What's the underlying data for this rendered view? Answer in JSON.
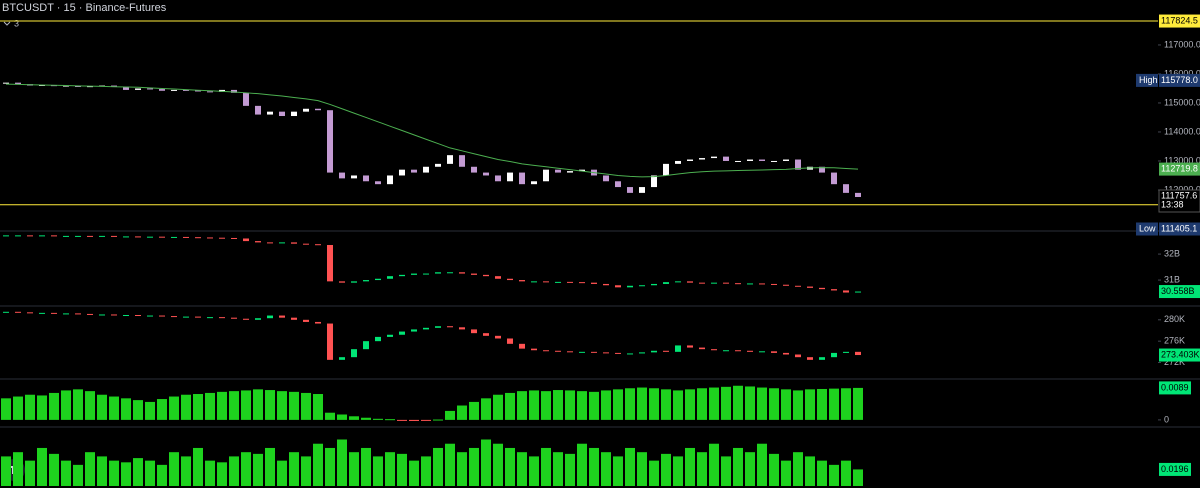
{
  "chart_data": [
    {
      "type": "candlestick",
      "title": "BTCUSDT · 15 · Binance-Futures",
      "indicator_count": "3",
      "up_color": "#ffffff",
      "down_color": "#c39bd3",
      "values": [
        115700,
        115650,
        115600,
        115620,
        115580,
        115600,
        115550,
        115580,
        115600,
        115560,
        115450,
        115500,
        115480,
        115420,
        115450,
        115430,
        115400,
        115380,
        115450,
        115350,
        114900,
        114600,
        114700,
        114550,
        114700,
        114800,
        114750,
        112600,
        112400,
        112500,
        112300,
        112200,
        112500,
        112700,
        112600,
        112800,
        112900,
        113200,
        112800,
        112600,
        112500,
        112300,
        112600,
        112200,
        112300,
        112700,
        112600,
        112650,
        112700,
        112500,
        112300,
        112100,
        111900,
        112100,
        112500,
        112900,
        113000,
        113050,
        113100,
        113150,
        113000,
        113000,
        113050,
        113000,
        113000,
        113050,
        112700,
        112800,
        112600,
        112200,
        111900,
        111757.6
      ],
      "last_time": "13:38",
      "ma": {
        "color": "#4caf50",
        "values": [
          115650,
          115640,
          115630,
          115620,
          115610,
          115600,
          115590,
          115580,
          115570,
          115560,
          115550,
          115540,
          115520,
          115500,
          115480,
          115460,
          115440,
          115420,
          115400,
          115380,
          115350,
          115320,
          115280,
          115240,
          115190,
          115140,
          115080,
          114950,
          114800,
          114650,
          114500,
          114350,
          114200,
          114050,
          113900,
          113750,
          113600,
          113450,
          113350,
          113250,
          113150,
          113050,
          112980,
          112900,
          112850,
          112800,
          112750,
          112700,
          112650,
          112600,
          112550,
          112500,
          112470,
          112450,
          112460,
          112500,
          112550,
          112600,
          112630,
          112650,
          112660,
          112670,
          112680,
          112690,
          112700,
          112710,
          112740,
          112760,
          112770,
          112765,
          112740,
          112719.8
        ]
      },
      "levels": [
        {
          "value": 117824.5,
          "color": "#ffeb3b"
        },
        {
          "value": 111489.9,
          "color": "#ffeb3b"
        }
      ],
      "high": {
        "name": "High",
        "value": {
          "value": 115778,
          "label": "115778.0"
        }
      },
      "low": {
        "name": "Low",
        "value": 111405.1
      },
      "ylim": [
        110620,
        118550
      ],
      "yticks": [
        {
          "value": 112000,
          "label": "112000.0"
        },
        {
          "value": 113000,
          "label": "113000.0"
        },
        {
          "value": 114000,
          "label": "114000.0"
        },
        {
          "value": 115000,
          "label": "115000.0"
        },
        {
          "value": 116000,
          "label": "116000.0"
        },
        {
          "value": 117000,
          "label": "117000.0"
        }
      ]
    },
    {
      "type": "candlestick",
      "up_color": "#00e676",
      "down_color": "#ff5252",
      "values": [
        32.72,
        32.72,
        32.71,
        32.72,
        32.7,
        32.7,
        32.7,
        32.69,
        32.7,
        32.68,
        32.68,
        32.67,
        32.67,
        32.66,
        32.66,
        32.65,
        32.64,
        32.63,
        32.62,
        32.6,
        32.5,
        32.45,
        32.42,
        32.45,
        32.4,
        32.38,
        32.35,
        30.95,
        30.9,
        30.95,
        31.0,
        31.05,
        31.15,
        31.2,
        31.25,
        31.25,
        31.3,
        31.3,
        31.25,
        31.2,
        31.15,
        31.05,
        31.0,
        30.95,
        30.95,
        30.93,
        30.93,
        30.92,
        30.9,
        30.85,
        30.8,
        30.72,
        30.78,
        30.8,
        30.85,
        30.92,
        30.95,
        30.9,
        30.88,
        30.9,
        30.88,
        30.85,
        30.87,
        30.85,
        30.82,
        30.78,
        30.75,
        30.7,
        30.65,
        30.6,
        30.52,
        30.558
      ],
      "last_label": "30.558B",
      "ylim": [
        30.04,
        32.85
      ],
      "yticks": [
        {
          "value": 31,
          "label": "31B"
        },
        {
          "value": 32,
          "label": "32B"
        }
      ]
    },
    {
      "type": "candlestick",
      "up_color": "#00e676",
      "down_color": "#ff5252",
      "values": [
        281.5,
        281.4,
        281.3,
        281.3,
        281.2,
        281.2,
        281.1,
        281.0,
        281.0,
        280.9,
        280.9,
        280.8,
        280.8,
        280.7,
        280.6,
        280.6,
        280.5,
        280.5,
        280.4,
        280.2,
        280.0,
        280.3,
        280.8,
        280.4,
        280.0,
        279.6,
        279.3,
        272.5,
        273.0,
        274.5,
        276.0,
        276.8,
        277.2,
        277.8,
        278.2,
        278.5,
        278.8,
        278.6,
        278.2,
        277.5,
        277.0,
        276.5,
        275.5,
        274.6,
        274.3,
        274.2,
        274.1,
        274.0,
        274.0,
        273.9,
        273.8,
        273.7,
        273.7,
        273.9,
        274.2,
        274.0,
        275.2,
        274.8,
        274.5,
        274.3,
        274.3,
        274.2,
        274.0,
        274.1,
        273.8,
        273.5,
        273.0,
        272.5,
        273.0,
        273.8,
        274.0,
        273.403
      ],
      "last_label": "273.403K",
      "ylim": [
        269.1,
        282.4
      ],
      "yticks": [
        {
          "value": 272,
          "label": "272K"
        },
        {
          "value": 276,
          "label": "276K"
        },
        {
          "value": 280,
          "label": "280K"
        }
      ]
    },
    {
      "type": "bar",
      "color": "#1ed21e",
      "negative_color": "#ff5252",
      "values": [
        0.006,
        0.0065,
        0.007,
        0.0068,
        0.0075,
        0.0082,
        0.0085,
        0.008,
        0.007,
        0.0065,
        0.006,
        0.0055,
        0.005,
        0.0058,
        0.0065,
        0.007,
        0.0072,
        0.0075,
        0.0078,
        0.008,
        0.0082,
        0.0085,
        0.0083,
        0.008,
        0.0078,
        0.0075,
        0.0072,
        0.002,
        0.0015,
        0.001,
        0.0006,
        0.0003,
        0.0002,
        -0.0002,
        -0.0003,
        -0.0002,
        0.0001,
        0.0025,
        0.004,
        0.005,
        0.006,
        0.007,
        0.0075,
        0.008,
        0.0082,
        0.008,
        0.0083,
        0.0082,
        0.008,
        0.0078,
        0.0082,
        0.0085,
        0.0088,
        0.009,
        0.0088,
        0.0085,
        0.0082,
        0.0085,
        0.0088,
        0.009,
        0.0092,
        0.0095,
        0.0093,
        0.009,
        0.0088,
        0.0085,
        0.0082,
        0.0085,
        0.0086,
        0.0087,
        0.0088,
        0.0089
      ],
      "ylim": [
        -0.0017,
        0.0111
      ],
      "yticks": [
        0
      ]
    },
    {
      "type": "bar",
      "color": "#1ed21e",
      "negative_color": "#ff5252",
      "values": [
        0.035,
        0.04,
        0.03,
        0.045,
        0.038,
        0.03,
        0.025,
        0.04,
        0.035,
        0.03,
        0.028,
        0.033,
        0.03,
        0.025,
        0.04,
        0.035,
        0.045,
        0.03,
        0.028,
        0.035,
        0.04,
        0.038,
        0.045,
        0.03,
        0.04,
        0.035,
        0.05,
        0.045,
        0.055,
        0.04,
        0.045,
        0.035,
        0.04,
        0.038,
        0.03,
        0.035,
        0.045,
        0.05,
        0.04,
        0.045,
        0.055,
        0.05,
        0.045,
        0.04,
        0.035,
        0.045,
        0.04,
        0.038,
        0.05,
        0.045,
        0.04,
        0.035,
        0.045,
        0.04,
        0.03,
        0.038,
        0.035,
        0.045,
        0.04,
        0.05,
        0.035,
        0.045,
        0.04,
        0.05,
        0.038,
        0.03,
        0.04,
        0.035,
        0.03,
        0.025,
        0.03,
        0.0196
      ],
      "ylim": [
        0,
        0.0686
      ],
      "yticks": []
    }
  ]
}
